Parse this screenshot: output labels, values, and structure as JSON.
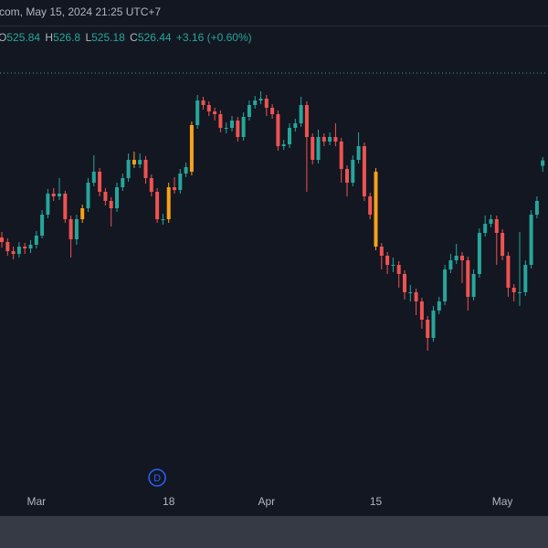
{
  "header": {
    "title": "com, May 15, 2024 21:25 UTC+7",
    "ohlc_letters": [
      "O",
      "H",
      "L",
      "C"
    ],
    "change": "+3.16 (+0.60%)"
  },
  "chart_data": {
    "type": "candlestick",
    "categories": [
      null,
      null,
      null,
      null,
      null,
      null,
      "Mar",
      null,
      null,
      null,
      null,
      null,
      null,
      null,
      null,
      null,
      null,
      null,
      null,
      null,
      null,
      null,
      null,
      null,
      null,
      null,
      null,
      null,
      null,
      "18",
      null,
      null,
      null,
      null,
      null,
      null,
      null,
      null,
      null,
      null,
      null,
      null,
      null,
      null,
      null,
      null,
      "Apr",
      null,
      null,
      null,
      null,
      null,
      null,
      null,
      null,
      null,
      null,
      null,
      null,
      null,
      null,
      null,
      null,
      null,
      null,
      "15",
      null,
      null,
      null,
      null,
      null,
      null,
      null,
      null,
      null,
      null,
      null,
      null,
      null,
      null,
      null,
      null,
      null,
      null,
      null,
      null,
      null,
      "May",
      null,
      null,
      null,
      null,
      null,
      null,
      null
    ],
    "open": [
      518.0,
      517.5,
      516.5,
      516.2,
      517.0,
      516.8,
      517.2,
      518.2,
      520.5,
      522.8,
      522.5,
      522.8,
      520.0,
      517.8,
      520.0,
      521.2,
      524.0,
      525.2,
      523.0,
      522.0,
      521.2,
      523.5,
      524.5,
      526.5,
      526.0,
      526.5,
      524.5,
      523.0,
      520.0,
      520.0,
      523.5,
      523.2,
      525.0,
      525.2,
      530.3,
      533.0,
      532.5,
      531.8,
      531.5,
      530.0,
      530.0,
      530.8,
      529.0,
      531.2,
      532.5,
      533.0,
      533.2,
      532.2,
      531.5,
      528.0,
      528.2,
      530.0,
      530.5,
      532.5,
      529.0,
      526.5,
      529.0,
      528.5,
      529.0,
      528.5,
      525.5,
      524.0,
      526.5,
      528.0,
      522.5,
      525.2,
      517.0,
      516.0,
      515.0,
      515.0,
      514.0,
      512.0,
      512.0,
      511.0,
      509.0,
      507.0,
      510.0,
      511.0,
      514.5,
      515.5,
      516.0,
      515.5,
      511.5,
      514.0,
      518.5,
      519.5,
      520.0,
      518.5,
      516.0,
      512.5,
      512.0,
      512.0,
      515.0,
      520.5,
      525.84
    ],
    "high": [
      518.6,
      517.9,
      517.0,
      517.5,
      517.4,
      517.7,
      518.7,
      521.0,
      523.3,
      523.4,
      524.5,
      523.1,
      520.4,
      520.5,
      521.6,
      524.5,
      527.0,
      525.6,
      523.4,
      522.4,
      524.0,
      525.0,
      527.2,
      527.4,
      527.2,
      526.9,
      524.9,
      523.4,
      520.6,
      524.0,
      524.6,
      525.5,
      526.2,
      530.7,
      533.6,
      533.4,
      532.9,
      532.2,
      531.9,
      530.6,
      531.3,
      531.2,
      531.7,
      533.0,
      533.5,
      534.0,
      533.6,
      532.6,
      531.9,
      528.7,
      530.5,
      531.0,
      533.4,
      532.9,
      529.4,
      529.8,
      529.4,
      529.5,
      530.5,
      528.9,
      525.9,
      527.0,
      529.5,
      528.4,
      522.9,
      525.6,
      517.4,
      516.4,
      515.8,
      515.4,
      514.4,
      512.8,
      512.4,
      511.4,
      509.4,
      510.5,
      511.5,
      515.0,
      516.2,
      517.3,
      516.4,
      515.9,
      514.5,
      519.0,
      520.4,
      520.5,
      520.4,
      518.9,
      516.4,
      512.9,
      518.6,
      515.5,
      521.0,
      522.5,
      526.8
    ],
    "low": [
      516.9,
      516.0,
      515.6,
      515.8,
      516.2,
      516.3,
      516.8,
      517.9,
      520.1,
      522.0,
      522.1,
      519.6,
      515.8,
      517.2,
      519.6,
      520.8,
      523.6,
      522.5,
      521.5,
      519.2,
      520.8,
      523.1,
      524.1,
      525.6,
      525.6,
      523.9,
      522.5,
      519.6,
      519.4,
      519.6,
      522.8,
      522.8,
      524.6,
      524.8,
      529.9,
      532.0,
      531.3,
      530.8,
      529.5,
      529.4,
      529.6,
      528.5,
      528.6,
      530.8,
      532.1,
      532.6,
      531.3,
      531.0,
      527.5,
      527.6,
      527.8,
      529.6,
      530.1,
      523.0,
      526.0,
      526.1,
      528.0,
      528.1,
      528.0,
      524.0,
      522.5,
      523.6,
      526.1,
      522.0,
      520.0,
      516.6,
      514.5,
      514.0,
      514.2,
      512.5,
      511.2,
      511.0,
      509.5,
      508.0,
      505.6,
      506.6,
      509.6,
      510.6,
      514.1,
      515.1,
      513.0,
      510.0,
      511.1,
      513.6,
      518.1,
      519.1,
      515.0,
      515.5,
      511.5,
      511.0,
      510.5,
      511.6,
      514.6,
      520.1,
      525.18
    ],
    "close": [
      517.5,
      516.5,
      516.2,
      517.0,
      516.8,
      517.2,
      518.2,
      520.5,
      522.8,
      522.5,
      522.8,
      520.0,
      517.8,
      520.0,
      521.2,
      524.0,
      525.2,
      523.0,
      522.0,
      521.2,
      523.5,
      524.5,
      526.5,
      526.0,
      526.5,
      524.5,
      523.0,
      520.0,
      520.0,
      523.5,
      523.2,
      525.0,
      525.7,
      530.3,
      533.0,
      532.5,
      531.8,
      531.5,
      530.0,
      530.0,
      530.8,
      529.0,
      531.2,
      532.5,
      533.0,
      533.2,
      532.2,
      531.5,
      528.0,
      528.2,
      530.0,
      530.5,
      532.5,
      529.0,
      526.5,
      529.0,
      528.5,
      529.0,
      528.5,
      525.5,
      524.0,
      526.5,
      528.0,
      522.5,
      520.5,
      517.0,
      516.0,
      515.0,
      515.0,
      514.0,
      512.0,
      512.0,
      511.0,
      509.0,
      507.0,
      510.0,
      511.0,
      514.5,
      515.5,
      516.0,
      515.5,
      511.5,
      514.0,
      518.5,
      519.5,
      520.0,
      518.5,
      516.0,
      512.5,
      512.0,
      512.0,
      515.0,
      520.5,
      522.0,
      526.44
    ],
    "up_color": "#26a69a",
    "down_color": "#ef5350",
    "highlight_color": "#f7a21b",
    "highlight": [
      14,
      23,
      29,
      33,
      65
    ],
    "ylim": [
      487.5,
      544
    ],
    "reference_line": 536,
    "reference_color": "#26a69a",
    "events": [
      {
        "index": 27,
        "label": "D"
      }
    ]
  }
}
